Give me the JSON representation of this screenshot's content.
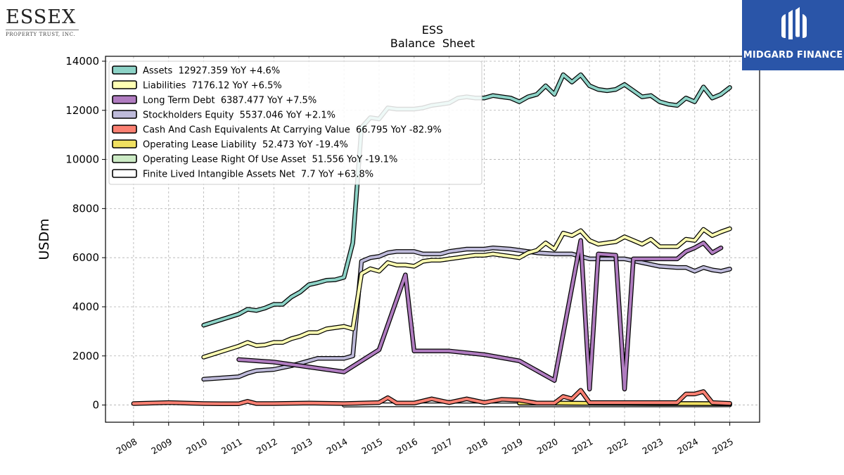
{
  "company_logo": {
    "name": "ESSEX",
    "tagline": "PROPERTY TRUST, INC."
  },
  "brand_logo": {
    "name": "MIDGARD FINANCE",
    "icon": "midgard-m-icon"
  },
  "chart_data": {
    "type": "line",
    "title": "ESS",
    "subtitle": "Balance  Sheet",
    "xlabel": "",
    "ylabel": "USDm",
    "xlim": [
      2007.2,
      2025.85
    ],
    "ylim": [
      -700,
      14200
    ],
    "xticks": [
      2008,
      2009,
      2010,
      2011,
      2012,
      2013,
      2014,
      2015,
      2016,
      2017,
      2018,
      2019,
      2020,
      2021,
      2022,
      2023,
      2024,
      2025
    ],
    "yticks": [
      0,
      2000,
      4000,
      6000,
      8000,
      10000,
      12000,
      14000
    ],
    "grid": true,
    "legend_position": "top-left",
    "series": [
      {
        "name": "Assets",
        "legend": "Assets  12927.359 YoY +4.6%",
        "color": "#8dd3c7",
        "points": [
          [
            2010.0,
            3250
          ],
          [
            2011.0,
            3700
          ],
          [
            2011.25,
            3900
          ],
          [
            2011.5,
            3850
          ],
          [
            2011.75,
            3950
          ],
          [
            2012.0,
            4100
          ],
          [
            2012.25,
            4100
          ],
          [
            2012.5,
            4400
          ],
          [
            2012.75,
            4600
          ],
          [
            2013.0,
            4900
          ],
          [
            2013.25,
            4980
          ],
          [
            2013.5,
            5080
          ],
          [
            2013.75,
            5100
          ],
          [
            2014.0,
            5200
          ],
          [
            2014.25,
            6600
          ],
          [
            2014.5,
            11300
          ],
          [
            2014.75,
            11700
          ],
          [
            2015.0,
            11650
          ],
          [
            2015.25,
            12100
          ],
          [
            2015.5,
            12050
          ],
          [
            2015.75,
            12050
          ],
          [
            2016.0,
            12050
          ],
          [
            2016.25,
            12100
          ],
          [
            2016.5,
            12200
          ],
          [
            2016.75,
            12250
          ],
          [
            2017.0,
            12300
          ],
          [
            2017.25,
            12500
          ],
          [
            2017.5,
            12550
          ],
          [
            2017.75,
            12500
          ],
          [
            2018.0,
            12500
          ],
          [
            2018.25,
            12600
          ],
          [
            2018.5,
            12550
          ],
          [
            2018.75,
            12500
          ],
          [
            2019.0,
            12350
          ],
          [
            2019.25,
            12550
          ],
          [
            2019.5,
            12650
          ],
          [
            2019.75,
            13000
          ],
          [
            2020.0,
            12650
          ],
          [
            2020.25,
            13450
          ],
          [
            2020.5,
            13150
          ],
          [
            2020.75,
            13450
          ],
          [
            2021.0,
            13000
          ],
          [
            2021.25,
            12850
          ],
          [
            2021.5,
            12800
          ],
          [
            2021.75,
            12850
          ],
          [
            2022.0,
            13050
          ],
          [
            2022.25,
            12800
          ],
          [
            2022.5,
            12550
          ],
          [
            2022.75,
            12600
          ],
          [
            2023.0,
            12350
          ],
          [
            2023.25,
            12250
          ],
          [
            2023.5,
            12200
          ],
          [
            2023.75,
            12500
          ],
          [
            2024.0,
            12350
          ],
          [
            2024.25,
            12950
          ],
          [
            2024.5,
            12500
          ],
          [
            2024.75,
            12650
          ],
          [
            2025.0,
            12927
          ]
        ]
      },
      {
        "name": "Liabilities",
        "legend": "Liabilities  7176.12 YoY +6.5%",
        "color": "#ffffb3",
        "points": [
          [
            2010.0,
            1950
          ],
          [
            2011.0,
            2400
          ],
          [
            2011.25,
            2550
          ],
          [
            2011.5,
            2420
          ],
          [
            2011.75,
            2450
          ],
          [
            2012.0,
            2550
          ],
          [
            2012.25,
            2550
          ],
          [
            2012.5,
            2700
          ],
          [
            2012.75,
            2800
          ],
          [
            2013.0,
            2950
          ],
          [
            2013.25,
            2950
          ],
          [
            2013.5,
            3100
          ],
          [
            2013.75,
            3150
          ],
          [
            2014.0,
            3200
          ],
          [
            2014.25,
            3100
          ],
          [
            2014.5,
            5350
          ],
          [
            2014.75,
            5550
          ],
          [
            2015.0,
            5450
          ],
          [
            2015.25,
            5800
          ],
          [
            2015.5,
            5700
          ],
          [
            2015.75,
            5700
          ],
          [
            2016.0,
            5650
          ],
          [
            2016.25,
            5850
          ],
          [
            2016.5,
            5900
          ],
          [
            2016.75,
            5900
          ],
          [
            2017.0,
            5950
          ],
          [
            2017.25,
            6000
          ],
          [
            2017.5,
            6050
          ],
          [
            2017.75,
            6100
          ],
          [
            2018.0,
            6100
          ],
          [
            2018.25,
            6150
          ],
          [
            2018.5,
            6100
          ],
          [
            2018.75,
            6050
          ],
          [
            2019.0,
            6000
          ],
          [
            2019.25,
            6200
          ],
          [
            2019.5,
            6300
          ],
          [
            2019.75,
            6600
          ],
          [
            2020.0,
            6350
          ],
          [
            2020.25,
            7000
          ],
          [
            2020.5,
            6900
          ],
          [
            2020.75,
            7100
          ],
          [
            2021.0,
            6700
          ],
          [
            2021.25,
            6550
          ],
          [
            2021.5,
            6600
          ],
          [
            2021.75,
            6650
          ],
          [
            2022.0,
            6850
          ],
          [
            2022.25,
            6700
          ],
          [
            2022.5,
            6550
          ],
          [
            2022.75,
            6750
          ],
          [
            2023.0,
            6450
          ],
          [
            2023.25,
            6450
          ],
          [
            2023.5,
            6450
          ],
          [
            2023.75,
            6750
          ],
          [
            2024.0,
            6700
          ],
          [
            2024.25,
            7150
          ],
          [
            2024.5,
            6900
          ],
          [
            2024.75,
            7050
          ],
          [
            2025.0,
            7176
          ]
        ]
      },
      {
        "name": "Long Term Debt",
        "legend": "Long Term Debt  6387.477 YoY +7.5%",
        "color": "#b07cc0",
        "points": [
          [
            2011.0,
            1850
          ],
          [
            2012.0,
            1750
          ],
          [
            2013.0,
            1550
          ],
          [
            2014.0,
            1350
          ],
          [
            2015.0,
            2250
          ],
          [
            2015.75,
            5300
          ],
          [
            2016.0,
            2200
          ],
          [
            2017.0,
            2200
          ],
          [
            2018.0,
            2050
          ],
          [
            2019.0,
            1800
          ],
          [
            2020.0,
            1000
          ],
          [
            2020.75,
            6700
          ],
          [
            2021.0,
            650
          ],
          [
            2021.25,
            6150
          ],
          [
            2021.75,
            6100
          ],
          [
            2022.0,
            650
          ],
          [
            2022.25,
            5950
          ],
          [
            2022.5,
            5950
          ],
          [
            2022.75,
            5950
          ],
          [
            2023.0,
            5950
          ],
          [
            2023.5,
            5950
          ],
          [
            2023.75,
            6250
          ],
          [
            2024.0,
            6400
          ],
          [
            2024.25,
            6600
          ],
          [
            2024.5,
            6200
          ],
          [
            2024.75,
            6400
          ]
        ]
      },
      {
        "name": "Stockholders Equity",
        "legend": "Stockholders Equity  5537.046 YoY +2.1%",
        "color": "#bebada",
        "points": [
          [
            2010.0,
            1050
          ],
          [
            2011.0,
            1150
          ],
          [
            2011.25,
            1300
          ],
          [
            2011.5,
            1400
          ],
          [
            2012.0,
            1450
          ],
          [
            2012.5,
            1600
          ],
          [
            2013.0,
            1800
          ],
          [
            2013.25,
            1900
          ],
          [
            2013.75,
            1900
          ],
          [
            2014.0,
            1900
          ],
          [
            2014.25,
            2000
          ],
          [
            2014.5,
            5850
          ],
          [
            2014.75,
            6000
          ],
          [
            2015.0,
            6050
          ],
          [
            2015.25,
            6200
          ],
          [
            2015.5,
            6250
          ],
          [
            2015.75,
            6250
          ],
          [
            2016.0,
            6250
          ],
          [
            2016.25,
            6150
          ],
          [
            2016.75,
            6150
          ],
          [
            2017.0,
            6250
          ],
          [
            2017.5,
            6350
          ],
          [
            2018.0,
            6350
          ],
          [
            2018.25,
            6400
          ],
          [
            2018.75,
            6350
          ],
          [
            2019.0,
            6300
          ],
          [
            2019.5,
            6200
          ],
          [
            2020.0,
            6150
          ],
          [
            2020.5,
            6150
          ],
          [
            2021.0,
            5950
          ],
          [
            2021.5,
            5950
          ],
          [
            2022.0,
            5950
          ],
          [
            2022.5,
            5800
          ],
          [
            2023.0,
            5650
          ],
          [
            2023.5,
            5600
          ],
          [
            2023.75,
            5600
          ],
          [
            2024.0,
            5450
          ],
          [
            2024.25,
            5600
          ],
          [
            2024.5,
            5500
          ],
          [
            2024.75,
            5450
          ],
          [
            2025.0,
            5537
          ]
        ]
      },
      {
        "name": "Cash And Cash Equivalents At Carrying Value",
        "legend": "Cash And Cash Equivalents At Carrying Value  66.795 YoY -82.9%",
        "color": "#fb8072",
        "points": [
          [
            2008.0,
            60
          ],
          [
            2009.0,
            100
          ],
          [
            2010.0,
            60
          ],
          [
            2010.5,
            50
          ],
          [
            2011.0,
            50
          ],
          [
            2011.25,
            150
          ],
          [
            2011.5,
            60
          ],
          [
            2012.0,
            60
          ],
          [
            2013.0,
            80
          ],
          [
            2014.0,
            60
          ],
          [
            2015.0,
            100
          ],
          [
            2015.25,
            300
          ],
          [
            2015.5,
            80
          ],
          [
            2016.0,
            80
          ],
          [
            2016.5,
            250
          ],
          [
            2017.0,
            100
          ],
          [
            2017.5,
            250
          ],
          [
            2018.0,
            100
          ],
          [
            2018.5,
            230
          ],
          [
            2019.0,
            200
          ],
          [
            2019.5,
            80
          ],
          [
            2020.0,
            80
          ],
          [
            2020.25,
            350
          ],
          [
            2020.5,
            250
          ],
          [
            2020.75,
            600
          ],
          [
            2021.0,
            100
          ],
          [
            2021.5,
            100
          ],
          [
            2022.0,
            100
          ],
          [
            2022.5,
            100
          ],
          [
            2023.0,
            100
          ],
          [
            2023.5,
            100
          ],
          [
            2023.75,
            450
          ],
          [
            2024.0,
            450
          ],
          [
            2024.25,
            550
          ],
          [
            2024.5,
            100
          ],
          [
            2025.0,
            67
          ]
        ]
      },
      {
        "name": "Operating Lease Liability",
        "legend": "Operating Lease Liability  52.473 YoY -19.4%",
        "color": "#f0e060",
        "points": [
          [
            2019.0,
            80
          ],
          [
            2020.0,
            80
          ],
          [
            2021.0,
            70
          ],
          [
            2022.0,
            65
          ],
          [
            2023.0,
            60
          ],
          [
            2024.0,
            60
          ],
          [
            2025.0,
            52
          ]
        ]
      },
      {
        "name": "Operating Lease Right Of Use Asset",
        "legend": "Operating Lease Right Of Use Asset  51.556 YoY -19.1%",
        "color": "#ccebc5",
        "points": [
          [
            2019.0,
            75
          ],
          [
            2020.0,
            75
          ],
          [
            2021.0,
            68
          ],
          [
            2022.0,
            63
          ],
          [
            2023.0,
            58
          ],
          [
            2024.0,
            58
          ],
          [
            2025.0,
            52
          ]
        ]
      },
      {
        "name": "Finite Lived Intangible Assets Net",
        "legend": "Finite Lived Intangible Assets Net  7.7 YoY +63.8%",
        "color": "#ffffff",
        "points": [
          [
            2014.0,
            0
          ],
          [
            2015.0,
            10
          ],
          [
            2016.0,
            8
          ],
          [
            2017.0,
            6
          ],
          [
            2018.0,
            5
          ],
          [
            2019.0,
            5
          ],
          [
            2020.0,
            5
          ],
          [
            2021.0,
            5
          ],
          [
            2022.0,
            5
          ],
          [
            2023.0,
            5
          ],
          [
            2024.0,
            5
          ],
          [
            2025.0,
            8
          ]
        ]
      }
    ]
  }
}
